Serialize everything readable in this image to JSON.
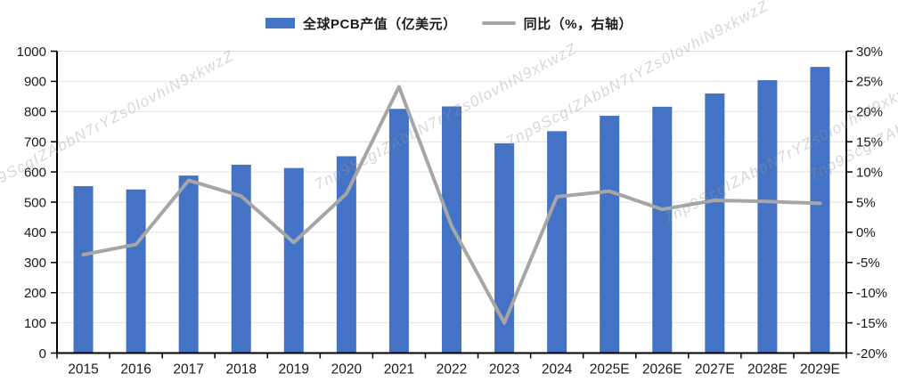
{
  "colors": {
    "bar": "#4472C4",
    "line": "#A6A6A6",
    "grid": "#E2E2E2",
    "axis": "#000000",
    "label": "#1A1A1A",
    "watermark": "#9A9A9F"
  },
  "watermark": {
    "text": "7np9ScgIZAbbN7rYZs0lovhiN9xkwzZ"
  },
  "chart_data": {
    "type": "combo_bar_line",
    "title": "",
    "categories": [
      "2015",
      "2016",
      "2017",
      "2018",
      "2019",
      "2020",
      "2021",
      "2022",
      "2023",
      "2024",
      "2025E",
      "2026E",
      "2027E",
      "2028E",
      "2029E"
    ],
    "series": [
      {
        "name": "全球PCB产值（亿美元）",
        "type": "bar",
        "axis": "left",
        "values": [
          553,
          542,
          588,
          624,
          613,
          652,
          809,
          817,
          695,
          735,
          786,
          816,
          860,
          904,
          948
        ]
      },
      {
        "name": "同比（%，右轴）",
        "type": "line",
        "axis": "right",
        "values": [
          -3.7,
          -2.0,
          8.6,
          6.0,
          -1.7,
          6.4,
          24.1,
          1.0,
          -15.0,
          5.9,
          6.8,
          3.8,
          5.3,
          5.1,
          4.8
        ]
      }
    ],
    "left_axis": {
      "min": 0,
      "max": 1000,
      "step": 100,
      "tick_labels": [
        "1000",
        "900",
        "800",
        "700",
        "600",
        "500",
        "400",
        "300",
        "200",
        "100",
        "0"
      ]
    },
    "right_axis": {
      "min": -20,
      "max": 30,
      "step": 5,
      "tick_labels": [
        "30%",
        "25%",
        "20%",
        "15%",
        "10%",
        "5%",
        "0%",
        "-5%",
        "-10%",
        "-15%",
        "-20%"
      ]
    },
    "grid": true,
    "legend_position": "top"
  }
}
